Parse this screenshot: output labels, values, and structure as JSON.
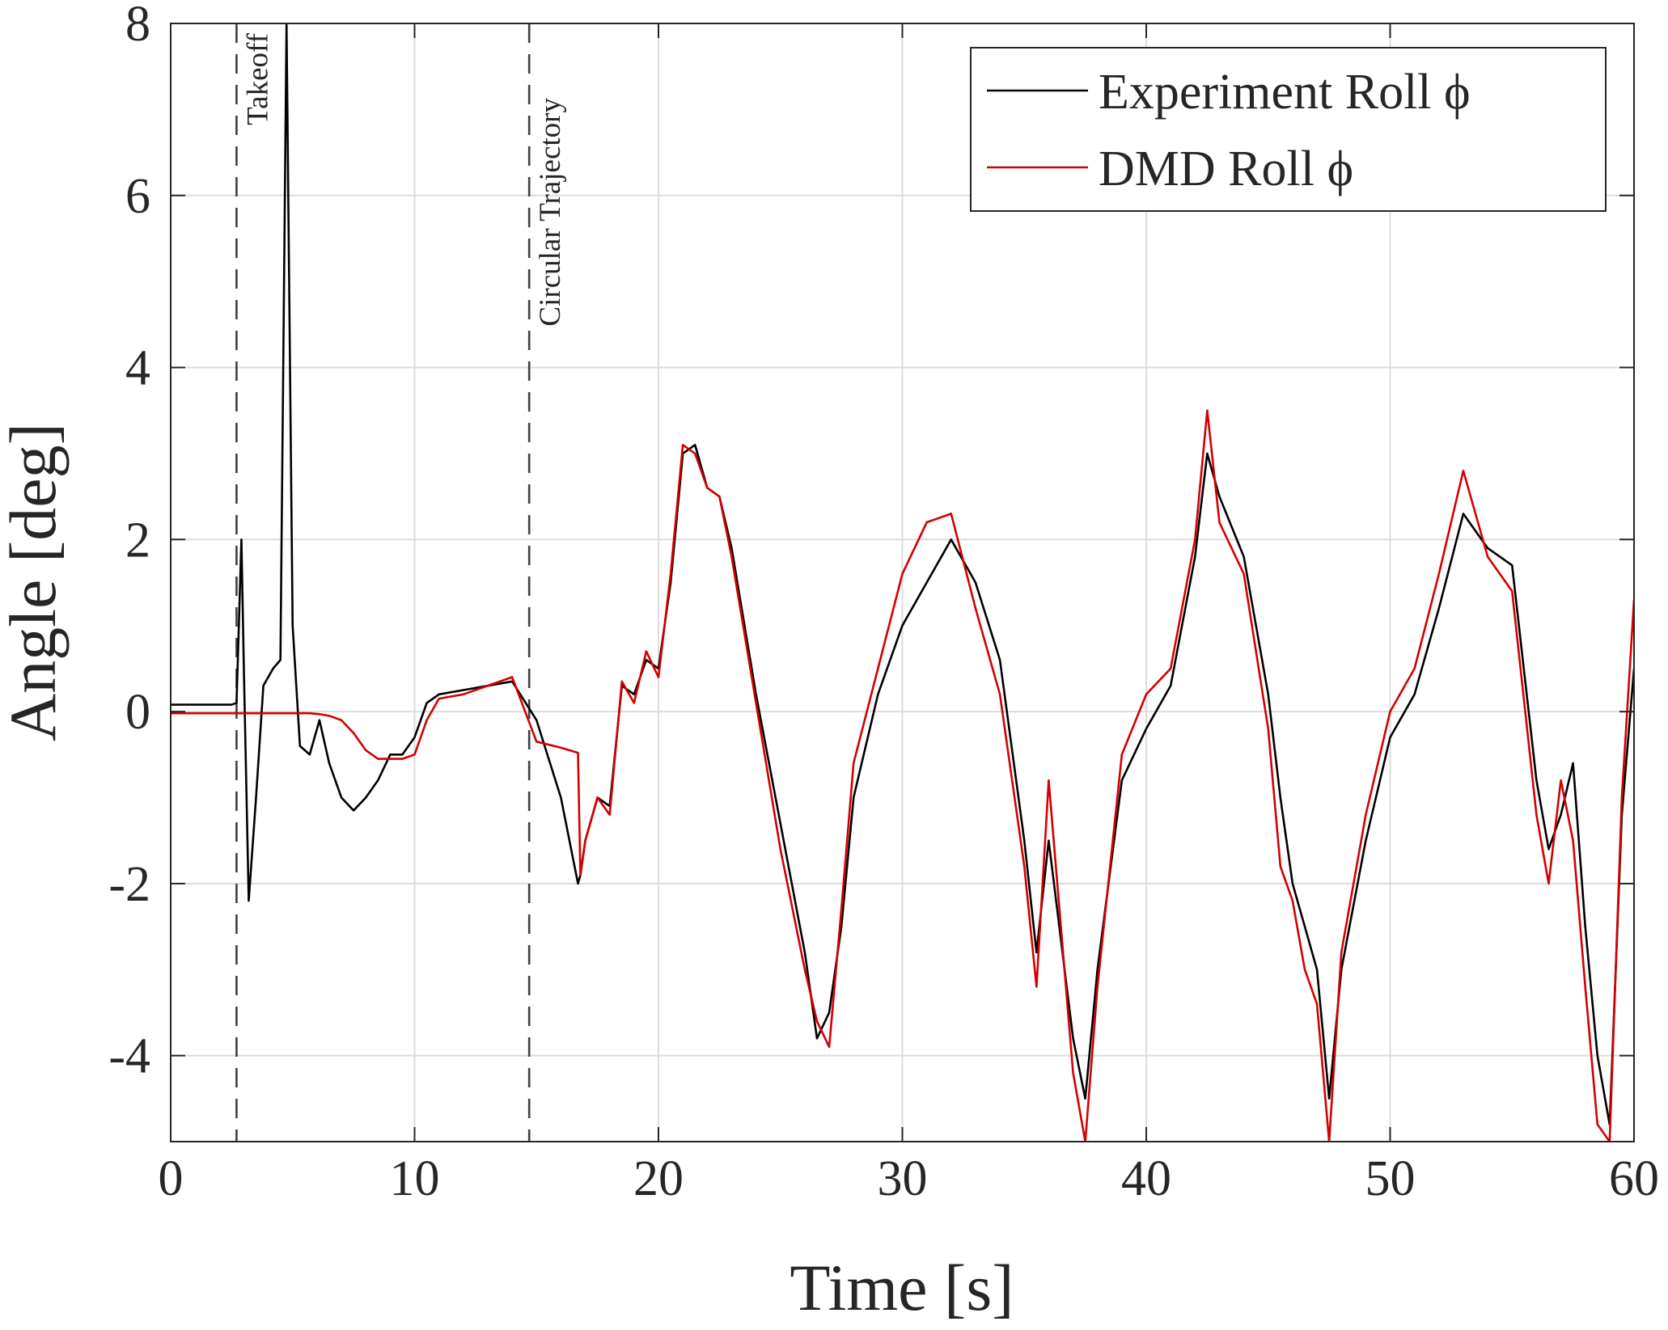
{
  "chart_data": {
    "type": "line",
    "xlabel": "Time [s]",
    "ylabel": "Angle [deg]",
    "x": [
      0,
      2.5,
      2.7,
      2.9,
      3.0,
      3.2,
      3.5,
      3.8,
      4.2,
      4.5,
      4.75,
      5.0,
      5.3,
      5.7,
      6.1,
      6.5,
      7.0,
      7.5,
      8.0,
      8.5,
      9.0,
      9.5,
      10.0,
      10.5,
      11,
      12,
      13,
      14,
      15,
      16,
      16.7,
      16.8,
      17,
      17.5,
      18,
      18.5,
      19,
      19.5,
      20,
      20.5,
      21,
      21.5,
      22,
      22.5,
      23,
      24,
      25,
      26,
      26.5,
      27,
      27.5,
      28,
      29,
      30,
      31,
      32,
      33,
      34,
      35,
      35.5,
      36,
      37,
      37.5,
      38,
      39,
      40,
      41,
      42,
      42.5,
      43,
      44,
      45,
      45.5,
      46,
      46.5,
      47,
      47.5,
      48,
      49,
      50,
      51,
      52,
      53,
      54,
      55,
      56,
      56.5,
      57,
      57.5,
      58,
      58.5,
      59,
      59.5,
      60
    ],
    "series": [
      {
        "name": "Experiment Roll ϕ",
        "color": "#000000",
        "values": [
          0.08,
          0.08,
          0.1,
          2.0,
          0.5,
          -2.2,
          -1.0,
          0.3,
          0.5,
          0.6,
          8,
          1.0,
          -0.4,
          -0.5,
          -0.1,
          -0.6,
          -1.0,
          -1.15,
          -1.0,
          -0.8,
          -0.5,
          -0.5,
          -0.3,
          0.1,
          0.2,
          0.25,
          0.3,
          0.35,
          -0.1,
          -1.0,
          -2.0,
          -1.9,
          -1.5,
          -1.0,
          -1.1,
          0.3,
          0.2,
          0.6,
          0.5,
          1.5,
          3.0,
          3.1,
          2.6,
          2.5,
          1.9,
          0.2,
          -1.3,
          -2.8,
          -3.8,
          -3.5,
          -2.5,
          -1.0,
          0.2,
          1.0,
          1.5,
          2.0,
          1.5,
          0.6,
          -1.5,
          -2.8,
          -1.5,
          -3.8,
          -4.5,
          -3.0,
          -0.8,
          -0.2,
          0.3,
          1.8,
          3.0,
          2.5,
          1.8,
          0.2,
          -1.0,
          -2.0,
          -2.5,
          -3.0,
          -4.5,
          -3.0,
          -1.5,
          -0.3,
          0.2,
          1.2,
          2.3,
          1.9,
          1.7,
          -0.8,
          -1.6,
          -1.2,
          -0.6,
          -2.5,
          -4.0,
          -4.8,
          -1.2,
          0.5
        ]
      },
      {
        "name": "DMD Roll ϕ",
        "color": "#d40000",
        "values": [
          -0.02,
          -0.02,
          -0.02,
          -0.02,
          -0.02,
          -0.02,
          -0.02,
          -0.02,
          -0.02,
          -0.02,
          -0.02,
          -0.02,
          -0.02,
          -0.02,
          -0.03,
          -0.05,
          -0.1,
          -0.25,
          -0.45,
          -0.55,
          -0.55,
          -0.55,
          -0.5,
          -0.1,
          0.15,
          0.2,
          0.3,
          0.4,
          -0.35,
          -0.42,
          -0.48,
          -1.9,
          -1.5,
          -1.0,
          -1.2,
          0.35,
          0.1,
          0.7,
          0.4,
          1.6,
          3.1,
          3.0,
          2.6,
          2.5,
          1.8,
          0.1,
          -1.6,
          -3.0,
          -3.6,
          -3.9,
          -2.3,
          -0.6,
          0.5,
          1.6,
          2.2,
          2.3,
          1.2,
          0.2,
          -1.8,
          -3.2,
          -0.8,
          -4.2,
          -5.0,
          -3.2,
          -0.5,
          0.2,
          0.5,
          2.0,
          3.5,
          2.2,
          1.6,
          -0.2,
          -1.8,
          -2.2,
          -3.0,
          -3.4,
          -5.0,
          -2.8,
          -1.2,
          0.0,
          0.5,
          1.6,
          2.8,
          1.8,
          1.4,
          -1.2,
          -2.0,
          -0.8,
          -1.5,
          -3.2,
          -4.8,
          -5.0,
          -1.0,
          1.3
        ]
      }
    ],
    "annotations": [
      {
        "text": "Takeoff",
        "x": 2.7
      },
      {
        "text": "Circular Trajectory",
        "x": 14.7
      }
    ],
    "xlim": [
      0,
      60
    ],
    "xticks": [
      0,
      10,
      20,
      30,
      40,
      50,
      60
    ],
    "ylim": [
      -5,
      8
    ],
    "yticks": [
      -4,
      -2,
      0,
      2,
      4,
      6,
      8
    ],
    "grid": true,
    "legend": "upper right"
  }
}
